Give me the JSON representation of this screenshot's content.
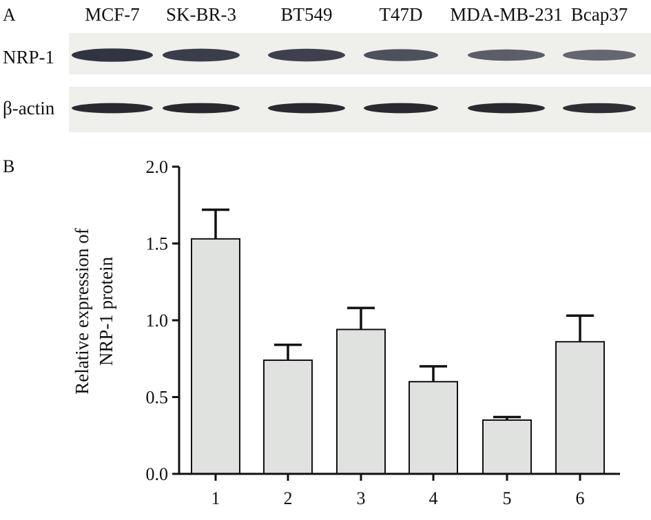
{
  "panel_a": {
    "label": "A",
    "cell_lines": [
      "MCF-7",
      "SK-BR-3",
      "BT549",
      "T47D",
      "MDA-MB-231",
      "Bcap37"
    ],
    "rows": [
      {
        "label": "NRP-1",
        "band_intensity": [
          0.95,
          0.88,
          0.85,
          0.72,
          0.62,
          0.55
        ],
        "band_color": "#2a2e3c"
      },
      {
        "label": "β-actin",
        "band_intensity": [
          0.9,
          0.92,
          0.9,
          0.9,
          0.9,
          0.88
        ],
        "band_color": "#1c1e24"
      }
    ],
    "row_background": "#efefec"
  },
  "chart_data": {
    "type": "bar",
    "panel_label": "B",
    "categories": [
      "1",
      "2",
      "3",
      "4",
      "5",
      "6"
    ],
    "values": [
      1.53,
      0.74,
      0.94,
      0.6,
      0.35,
      0.86
    ],
    "error": [
      0.19,
      0.1,
      0.14,
      0.1,
      0.02,
      0.17
    ],
    "ylabel_lines": [
      "Relative expression of",
      "NRP-1 protein"
    ],
    "xlabel": "",
    "ylim": [
      0,
      2.0
    ],
    "yticks": [
      "0.0",
      "0.5",
      "1.0",
      "1.5",
      "2.0"
    ],
    "ytick_values": [
      0,
      0.5,
      1.0,
      1.5,
      2.0
    ],
    "grid": false,
    "bar_color": "#e0e2e0"
  }
}
